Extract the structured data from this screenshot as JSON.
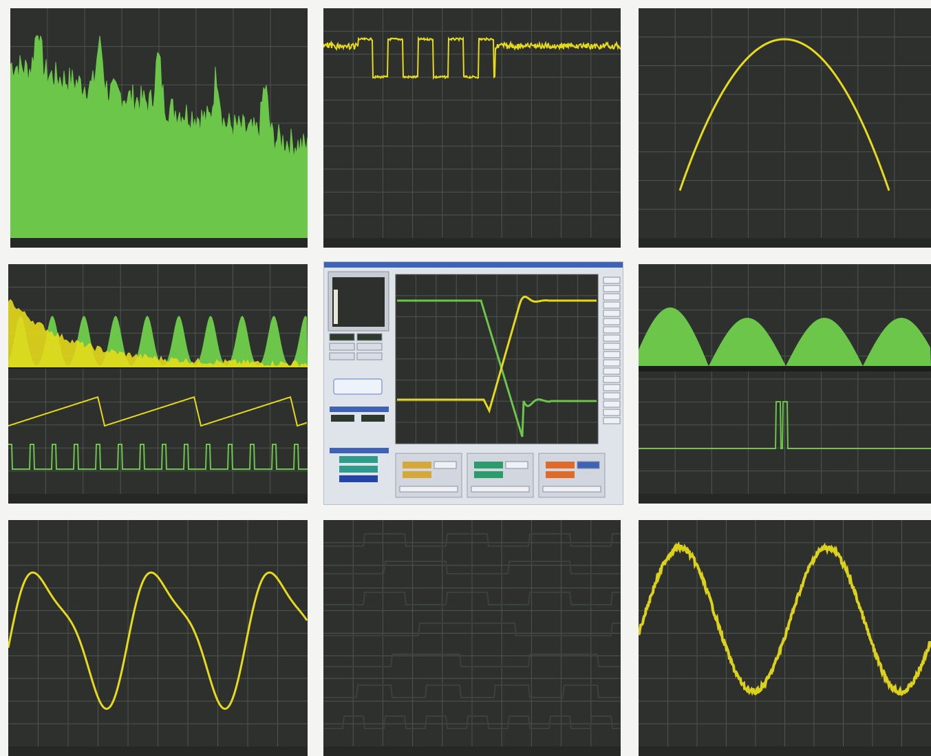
{
  "colors": {
    "background": "#f4f4f2",
    "screen": "#2d302d",
    "grid": "#505550",
    "trace_yellow": "#e5da1c",
    "trace_green": "#6cc64a",
    "fill_green": "#6cc64a",
    "app_window": "#dfe3ea",
    "app_titlebar": "#3d62b8"
  },
  "panels": [
    {
      "id": "spectrum-fft",
      "kind": "filled-spectrum"
    },
    {
      "id": "digital-burst",
      "kind": "waveform"
    },
    {
      "id": "lissajous",
      "kind": "xy-plot"
    },
    {
      "id": "harmonic-spectrum",
      "kind": "dual-display"
    },
    {
      "id": "oscilloscope-app",
      "kind": "application-window"
    },
    {
      "id": "arch-spectrum",
      "kind": "dual-display"
    },
    {
      "id": "distorted-sine",
      "kind": "waveform"
    },
    {
      "id": "logic-analyzer",
      "kind": "logic-channels"
    },
    {
      "id": "noisy-sine",
      "kind": "waveform"
    }
  ],
  "app": {
    "icons": [
      "play-icon",
      "stop-icon",
      "settings-icon",
      "zoom-icon",
      "cursor-icon",
      "export-icon"
    ]
  }
}
